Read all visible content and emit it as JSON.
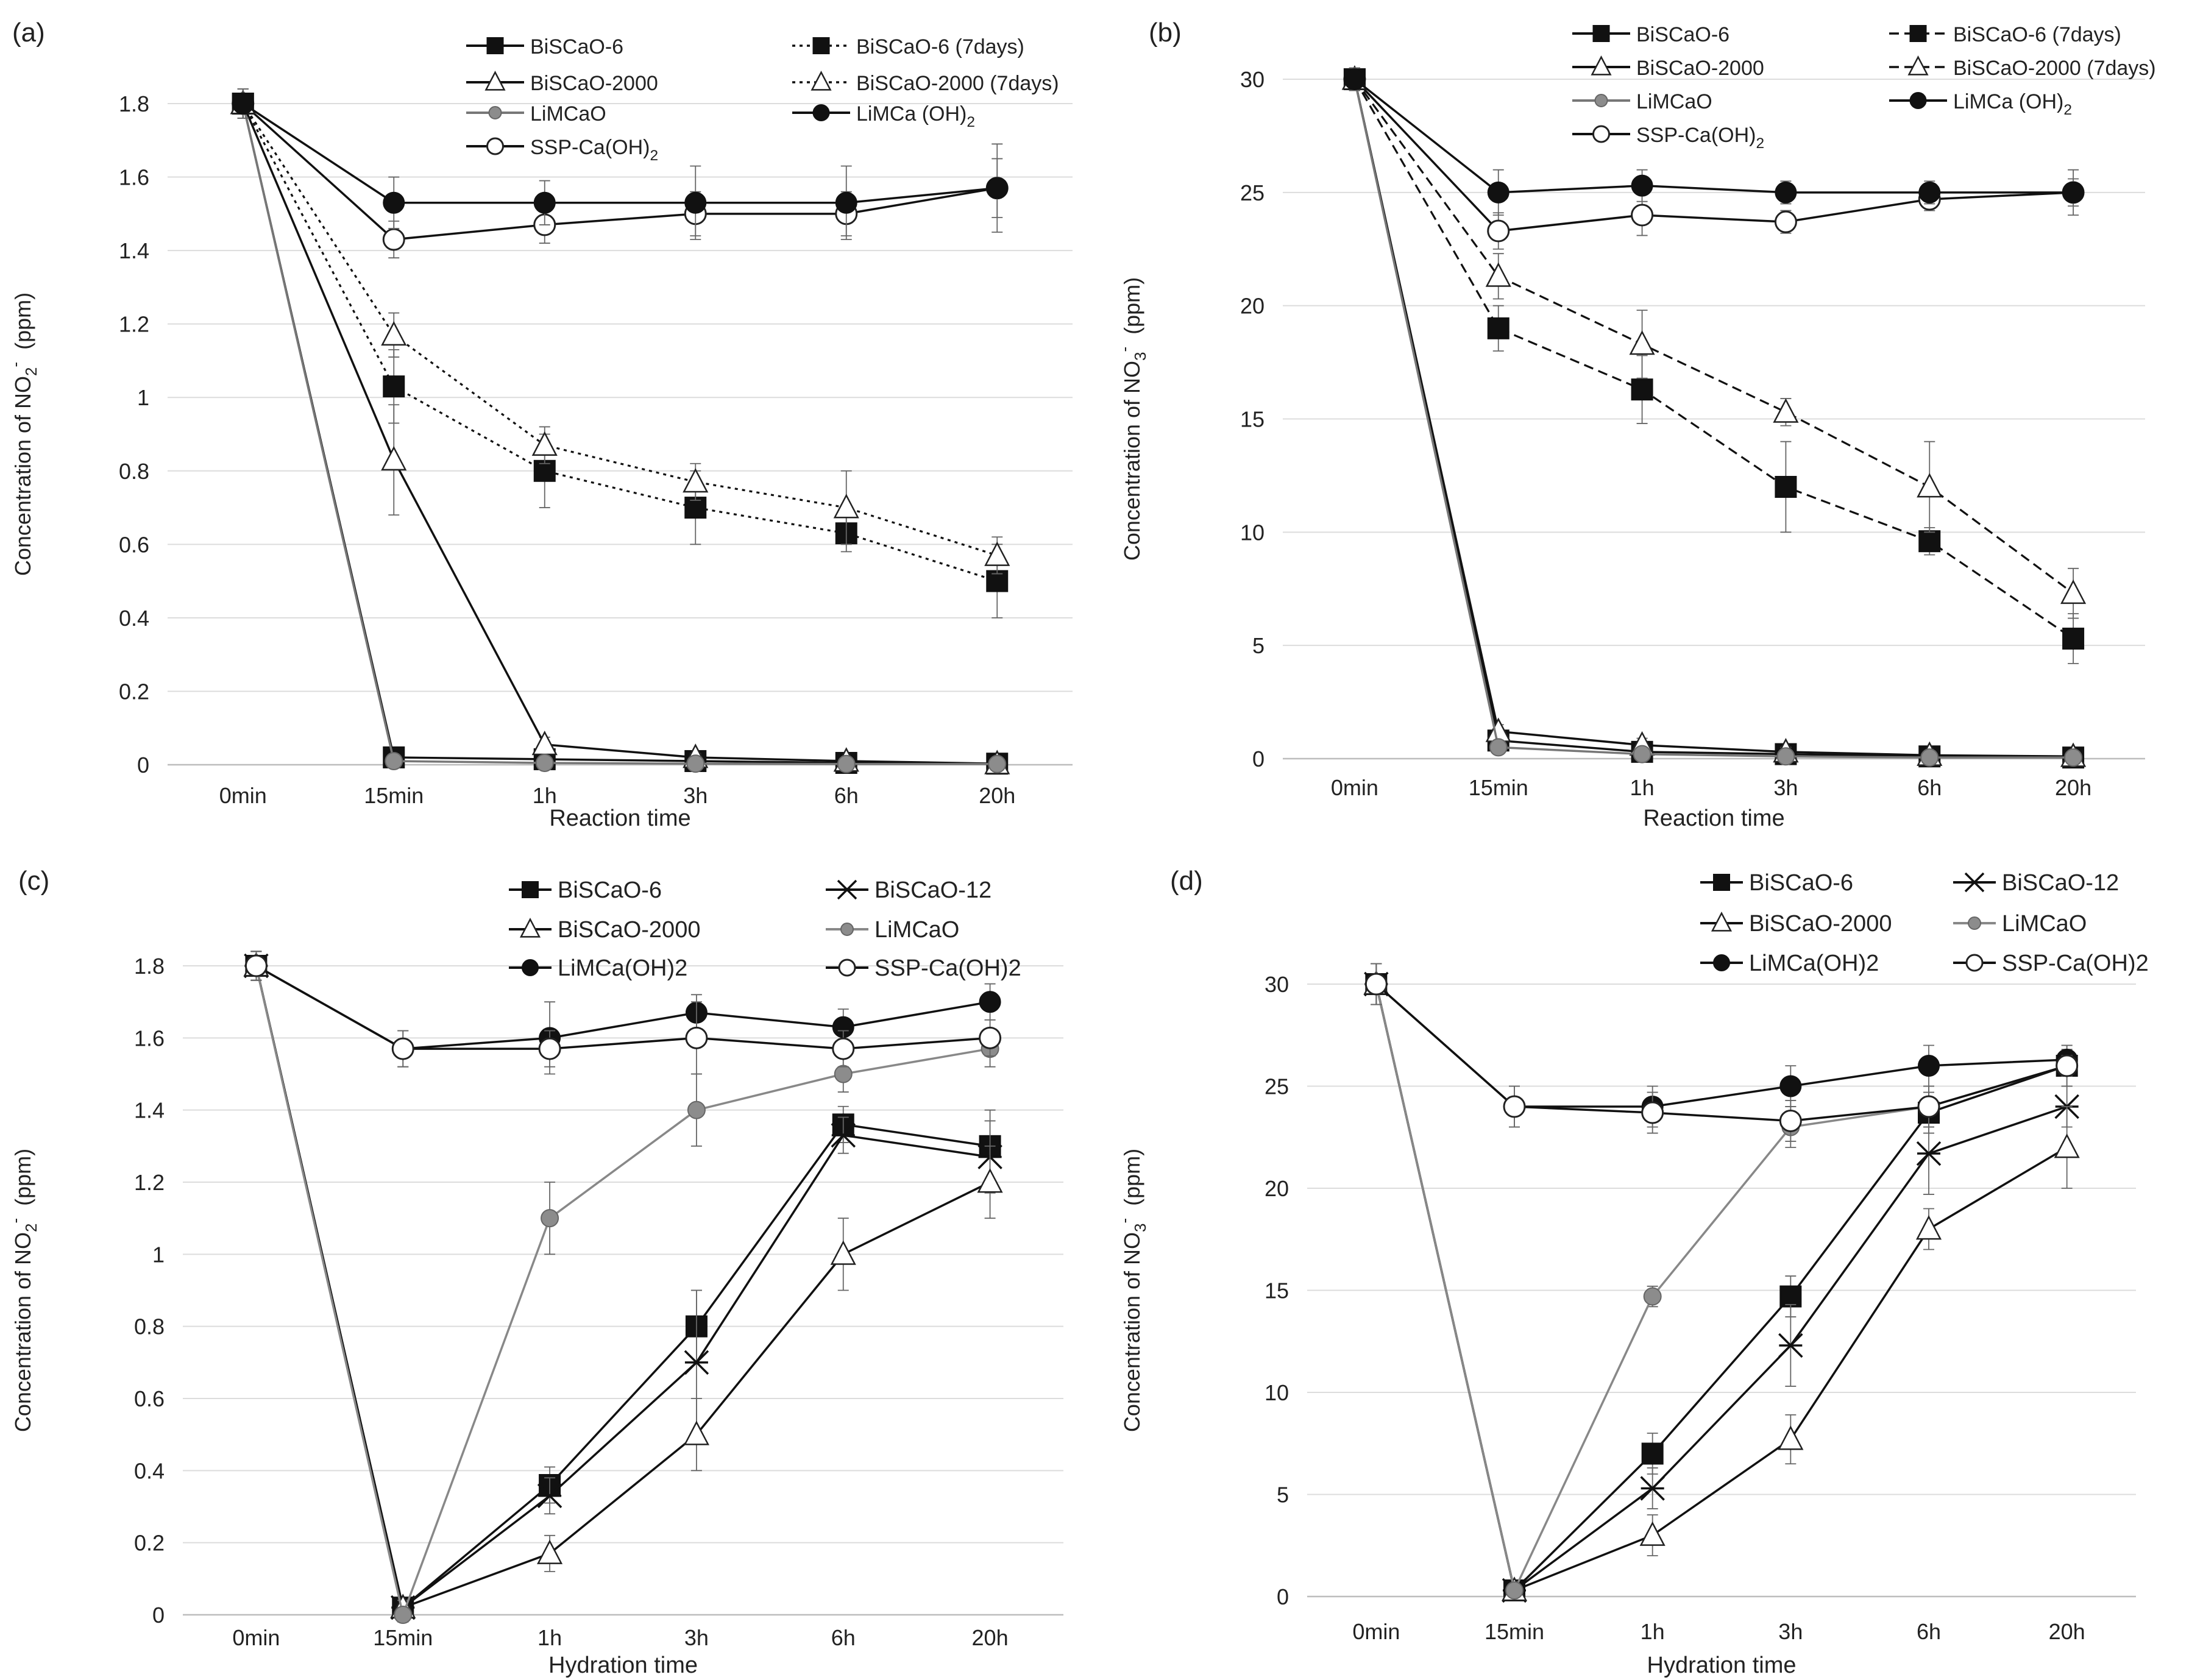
{
  "chart_data": [
    {
      "panel": "(a)",
      "type": "line",
      "ylabel": "Concentration of NO",
      "ylabel_sub": "2",
      "ylabel_sup": "-",
      "ylabel_unit": "(ppm)",
      "xlabel": "Reaction time",
      "categories": [
        "0min",
        "15min",
        "1h",
        "3h",
        "6h",
        "20h"
      ],
      "ylim": [
        0,
        1.8
      ],
      "yticks": [
        0,
        0.2,
        0.4,
        0.6,
        0.8,
        1,
        1.2,
        1.4,
        1.6,
        1.8
      ],
      "yticklabels": [
        "0",
        "0.2",
        "0.4",
        "0.6",
        "0.8",
        "1",
        "1.2",
        "1.4",
        "1.6",
        "1.8"
      ],
      "series": [
        {
          "name": "BiSCaO-6",
          "marker": "square",
          "dash": "solid",
          "color": "#111111",
          "values": [
            1.8,
            0.02,
            0.015,
            0.01,
            0.005,
            0.003
          ],
          "err": [
            0.04,
            0.01,
            0.01,
            0.01,
            0.01,
            0.01
          ]
        },
        {
          "name": "BiSCaO-2000",
          "marker": "triangle",
          "dash": "solid",
          "color": "#111111",
          "values": [
            1.8,
            0.83,
            0.055,
            0.02,
            0.01,
            0.003
          ],
          "err": [
            0.04,
            0.15,
            0.02,
            0.01,
            0.01,
            0.01
          ]
        },
        {
          "name": "LiMCaO",
          "marker": "circle-gray",
          "dash": "solid",
          "color": "#777777",
          "values": [
            1.8,
            0.01,
            0.005,
            0.003,
            0.002,
            0.002
          ],
          "err": [
            0.04,
            0.01,
            0.01,
            0.01,
            0.01,
            0.01
          ]
        },
        {
          "name": "SSP-Ca(OH)2",
          "legend_label": "SSP-Ca(OH)",
          "legend_sub": "2",
          "marker": "circle-open",
          "dash": "solid",
          "color": "#111111",
          "values": [
            1.8,
            1.43,
            1.47,
            1.5,
            1.5,
            1.57
          ],
          "err": [
            0.04,
            0.05,
            0.05,
            0.06,
            0.06,
            0.12
          ]
        },
        {
          "name": "BiSCaO-6 (7days)",
          "marker": "square",
          "dash": "dot",
          "color": "#111111",
          "values": [
            1.8,
            1.03,
            0.8,
            0.7,
            0.63,
            0.5
          ],
          "err": [
            0.04,
            0.1,
            0.1,
            0.1,
            0.05,
            0.1
          ]
        },
        {
          "name": "BiSCaO-2000 (7days)",
          "marker": "triangle",
          "dash": "dot",
          "color": "#111111",
          "values": [
            1.8,
            1.17,
            0.87,
            0.77,
            0.7,
            0.57
          ],
          "err": [
            0.04,
            0.06,
            0.05,
            0.05,
            0.1,
            0.05
          ]
        },
        {
          "name": "LiMCa (OH)2",
          "legend_label": "LiMCa (OH)",
          "legend_sub": "2",
          "marker": "circle-filled",
          "dash": "solid",
          "color": "#111111",
          "values": [
            1.8,
            1.53,
            1.53,
            1.53,
            1.53,
            1.57
          ],
          "err": [
            0.04,
            0.07,
            0.06,
            0.1,
            0.1,
            0.08
          ]
        }
      ]
    },
    {
      "panel": "(b)",
      "type": "line",
      "ylabel": "Concentration of NO",
      "ylabel_sub": "3",
      "ylabel_sup": "-",
      "ylabel_unit": "(ppm)",
      "xlabel": "Reaction time",
      "categories": [
        "0min",
        "15min",
        "1h",
        "3h",
        "6h",
        "20h"
      ],
      "ylim": [
        0,
        30
      ],
      "yticks": [
        0,
        5,
        10,
        15,
        20,
        25,
        30
      ],
      "yticklabels": [
        "0",
        "5",
        "10",
        "15",
        "20",
        "25",
        "30"
      ],
      "series": [
        {
          "name": "BiSCaO-6",
          "marker": "square",
          "dash": "solid",
          "color": "#111111",
          "values": [
            30,
            0.8,
            0.3,
            0.2,
            0.1,
            0.05
          ],
          "err": [
            0.5,
            0.3,
            0.3,
            0.2,
            0.2,
            0.2
          ]
        },
        {
          "name": "BiSCaO-2000",
          "marker": "triangle",
          "dash": "solid",
          "color": "#111111",
          "values": [
            30,
            1.2,
            0.6,
            0.3,
            0.15,
            0.1
          ],
          "err": [
            0.5,
            0.3,
            0.3,
            0.2,
            0.2,
            0.2
          ]
        },
        {
          "name": "LiMCaO",
          "marker": "circle-gray",
          "dash": "solid",
          "color": "#777777",
          "values": [
            30,
            0.5,
            0.2,
            0.1,
            0.05,
            0.05
          ],
          "err": [
            0.5,
            0.2,
            0.2,
            0.2,
            0.2,
            0.2
          ]
        },
        {
          "name": "SSP-Ca(OH)2",
          "legend_label": "SSP-Ca(OH)",
          "legend_sub": "2",
          "marker": "circle-open",
          "dash": "solid",
          "color": "#111111",
          "values": [
            30,
            23.3,
            24,
            23.7,
            24.7,
            25
          ],
          "err": [
            0.5,
            0.8,
            0.9,
            0.5,
            0.5,
            0.6
          ]
        },
        {
          "name": "BiSCaO-6 (7days)",
          "marker": "square",
          "dash": "dash",
          "color": "#111111",
          "values": [
            30,
            19,
            16.3,
            12,
            9.6,
            5.3
          ],
          "err": [
            0.5,
            1,
            1.5,
            2,
            0.6,
            1.1
          ]
        },
        {
          "name": "BiSCaO-2000 (7days)",
          "marker": "triangle",
          "dash": "dash",
          "color": "#111111",
          "values": [
            30,
            21.3,
            18.3,
            15.3,
            12,
            7.3
          ],
          "err": [
            0.5,
            1,
            1.5,
            0.6,
            2,
            1.1
          ]
        },
        {
          "name": "LiMCa (OH)2",
          "legend_label": "LiMCa (OH)",
          "legend_sub": "2",
          "marker": "circle-filled",
          "dash": "solid",
          "color": "#111111",
          "values": [
            30,
            25,
            25.3,
            25,
            25,
            25
          ],
          "err": [
            0.5,
            1,
            0.7,
            0.5,
            0.5,
            1
          ]
        }
      ]
    },
    {
      "panel": "(c)",
      "type": "line",
      "ylabel": "Concentration of NO",
      "ylabel_sub": "2",
      "ylabel_sup": "-",
      "ylabel_unit": "(ppm)",
      "xlabel": "Hydration time",
      "categories": [
        "0min",
        "15min",
        "1h",
        "3h",
        "6h",
        "20h"
      ],
      "ylim": [
        0,
        1.8
      ],
      "yticks": [
        0,
        0.2,
        0.4,
        0.6,
        0.8,
        1,
        1.2,
        1.4,
        1.6,
        1.8
      ],
      "yticklabels": [
        "0",
        "0.2",
        "0.4",
        "0.6",
        "0.8",
        "1",
        "1.2",
        "1.4",
        "1.6",
        "1.8"
      ],
      "series": [
        {
          "name": "BiSCaO-6",
          "marker": "square",
          "dash": "solid",
          "color": "#111111",
          "values": [
            1.8,
            0.02,
            0.36,
            0.8,
            1.36,
            1.3
          ],
          "err": [
            0.04,
            0.02,
            0.05,
            0.1,
            0.05,
            0.1
          ]
        },
        {
          "name": "BiSCaO-12",
          "marker": "star",
          "dash": "solid",
          "color": "#111111",
          "values": [
            1.8,
            0.02,
            0.33,
            0.7,
            1.33,
            1.27
          ],
          "err": [
            0.04,
            0.02,
            0.05,
            0.2,
            0.05,
            0.1
          ]
        },
        {
          "name": "BiSCaO-2000",
          "marker": "triangle",
          "dash": "solid",
          "color": "#111111",
          "values": [
            1.8,
            0.02,
            0.17,
            0.5,
            1,
            1.2
          ],
          "err": [
            0.04,
            0.02,
            0.05,
            0.1,
            0.1,
            0.1
          ]
        },
        {
          "name": "LiMCaO",
          "marker": "circle-gray",
          "dash": "solid",
          "color": "#888888",
          "values": [
            1.8,
            0,
            1.1,
            1.4,
            1.5,
            1.57
          ],
          "err": [
            0.04,
            0.02,
            0.1,
            0.1,
            0.05,
            0.05
          ]
        },
        {
          "name": "LiMCa(OH)2",
          "marker": "circle-filled",
          "dash": "solid",
          "color": "#111111",
          "values": [
            1.8,
            1.57,
            1.6,
            1.67,
            1.63,
            1.7
          ],
          "err": [
            0.04,
            0.05,
            0.1,
            0.05,
            0.05,
            0.05
          ]
        },
        {
          "name": "SSP-Ca(OH)2",
          "marker": "circle-open",
          "dash": "solid",
          "color": "#111111",
          "values": [
            1.8,
            1.57,
            1.57,
            1.6,
            1.57,
            1.6
          ],
          "err": [
            0.04,
            0.05,
            0.05,
            0.1,
            0.05,
            0.05
          ]
        }
      ]
    },
    {
      "panel": "(d)",
      "type": "line",
      "ylabel": "Concentration of NO",
      "ylabel_sub": "3",
      "ylabel_sup": "-",
      "ylabel_unit": "(ppm)",
      "xlabel": "Hydration time",
      "categories": [
        "0min",
        "15min",
        "1h",
        "3h",
        "6h",
        "20h"
      ],
      "ylim": [
        0,
        30
      ],
      "yticks": [
        0,
        5,
        10,
        15,
        20,
        25,
        30
      ],
      "yticklabels": [
        "0",
        "5",
        "10",
        "15",
        "20",
        "25",
        "30"
      ],
      "series": [
        {
          "name": "BiSCaO-6",
          "marker": "square",
          "dash": "solid",
          "color": "#111111",
          "values": [
            30,
            0.3,
            7,
            14.7,
            23.7,
            26
          ],
          "err": [
            1,
            0.3,
            1,
            1,
            1,
            1
          ]
        },
        {
          "name": "BiSCaO-12",
          "marker": "star",
          "dash": "solid",
          "color": "#111111",
          "values": [
            30,
            0.3,
            5.3,
            12.3,
            21.7,
            24
          ],
          "err": [
            1,
            0.3,
            1,
            2,
            2,
            1
          ]
        },
        {
          "name": "BiSCaO-2000",
          "marker": "triangle",
          "dash": "solid",
          "color": "#111111",
          "values": [
            30,
            0.3,
            3,
            7.7,
            18,
            22
          ],
          "err": [
            1,
            0.3,
            1,
            1.2,
            1,
            2
          ]
        },
        {
          "name": "LiMCaO",
          "marker": "circle-gray",
          "dash": "solid",
          "color": "#888888",
          "values": [
            30,
            0.3,
            14.7,
            23,
            24,
            26
          ],
          "err": [
            1,
            0.3,
            0.5,
            1,
            1,
            1
          ]
        },
        {
          "name": "LiMCa(OH)2",
          "marker": "circle-filled",
          "dash": "solid",
          "color": "#111111",
          "values": [
            30,
            24,
            24,
            25,
            26,
            26.3
          ],
          "err": [
            1,
            1,
            1,
            1,
            1,
            0.5
          ]
        },
        {
          "name": "SSP-Ca(OH)2",
          "marker": "circle-open",
          "dash": "solid",
          "color": "#111111",
          "values": [
            30,
            24,
            23.7,
            23.3,
            24,
            26
          ],
          "err": [
            1,
            1,
            1,
            1,
            1,
            0.5
          ]
        }
      ]
    }
  ]
}
